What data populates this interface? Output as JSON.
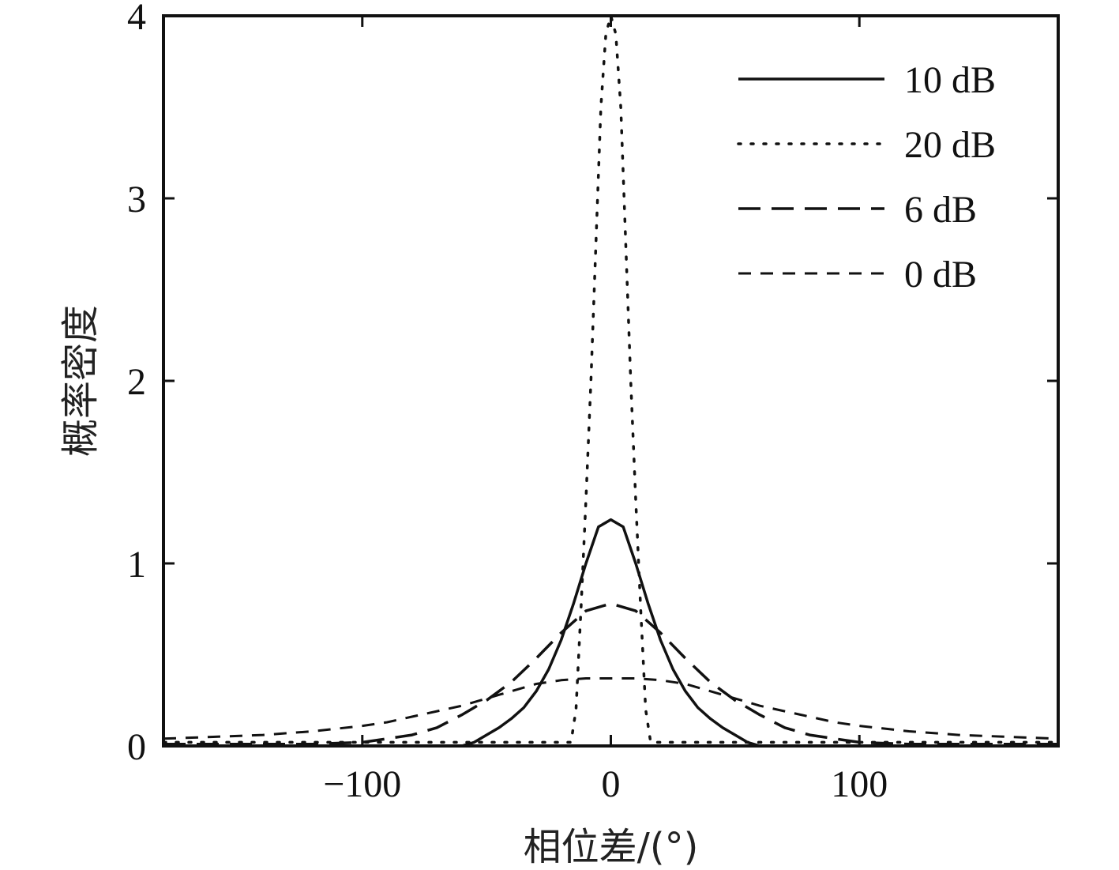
{
  "chart_data": {
    "type": "line",
    "title": "",
    "xlabel": "相位差/(°)",
    "ylabel": "概率密度",
    "xlim": [
      -180,
      180
    ],
    "ylim": [
      0,
      4
    ],
    "xticks": [
      -100,
      0,
      100
    ],
    "yticks": [
      0,
      1,
      2,
      3,
      4
    ],
    "xtick_labels": [
      "−100",
      "0",
      "100"
    ],
    "ytick_labels": [
      "0",
      "1",
      "2",
      "3",
      "4"
    ],
    "grid": false,
    "legend_position": "top-right",
    "series": [
      {
        "name": "10 dB",
        "style": "solid",
        "x": [
          -180,
          -60,
          -55,
          -50,
          -45,
          -40,
          -35,
          -30,
          -25,
          -20,
          -15,
          -10,
          -5,
          0,
          5,
          10,
          15,
          20,
          25,
          30,
          35,
          40,
          45,
          50,
          55,
          60,
          180
        ],
        "y": [
          0.0,
          0.0,
          0.02,
          0.06,
          0.1,
          0.15,
          0.21,
          0.3,
          0.42,
          0.58,
          0.78,
          1.0,
          1.2,
          1.24,
          1.2,
          1.0,
          0.78,
          0.58,
          0.42,
          0.3,
          0.21,
          0.15,
          0.1,
          0.06,
          0.02,
          0.0,
          0.0
        ]
      },
      {
        "name": "20 dB",
        "style": "dotted",
        "x": [
          -180,
          -16,
          -14,
          -12,
          -10,
          -8,
          -6,
          -4,
          -2,
          0,
          2,
          4,
          6,
          8,
          10,
          12,
          14,
          16,
          180
        ],
        "y": [
          0.02,
          0.02,
          0.2,
          0.75,
          1.35,
          2.0,
          2.75,
          3.5,
          3.9,
          4.0,
          3.9,
          3.5,
          2.75,
          2.0,
          1.35,
          0.75,
          0.2,
          0.02,
          0.02
        ]
      },
      {
        "name": "6 dB",
        "style": "longdash",
        "x": [
          -180,
          -120,
          -100,
          -90,
          -80,
          -70,
          -60,
          -50,
          -40,
          -30,
          -20,
          -10,
          0,
          10,
          20,
          30,
          40,
          50,
          60,
          70,
          80,
          90,
          100,
          120,
          180
        ],
        "y": [
          0.01,
          0.01,
          0.02,
          0.04,
          0.06,
          0.1,
          0.17,
          0.25,
          0.35,
          0.48,
          0.62,
          0.74,
          0.78,
          0.74,
          0.62,
          0.48,
          0.35,
          0.25,
          0.17,
          0.1,
          0.06,
          0.04,
          0.02,
          0.01,
          0.01
        ]
      },
      {
        "name": "0 dB",
        "style": "shortdash",
        "x": [
          -180,
          -160,
          -140,
          -120,
          -100,
          -90,
          -80,
          -70,
          -60,
          -50,
          -40,
          -30,
          -20,
          -10,
          0,
          10,
          20,
          30,
          40,
          50,
          60,
          70,
          80,
          90,
          100,
          120,
          140,
          160,
          180
        ],
        "y": [
          0.04,
          0.05,
          0.06,
          0.08,
          0.11,
          0.13,
          0.16,
          0.19,
          0.22,
          0.26,
          0.3,
          0.34,
          0.36,
          0.37,
          0.37,
          0.37,
          0.36,
          0.34,
          0.3,
          0.26,
          0.22,
          0.19,
          0.16,
          0.13,
          0.11,
          0.08,
          0.06,
          0.05,
          0.04
        ]
      }
    ]
  }
}
